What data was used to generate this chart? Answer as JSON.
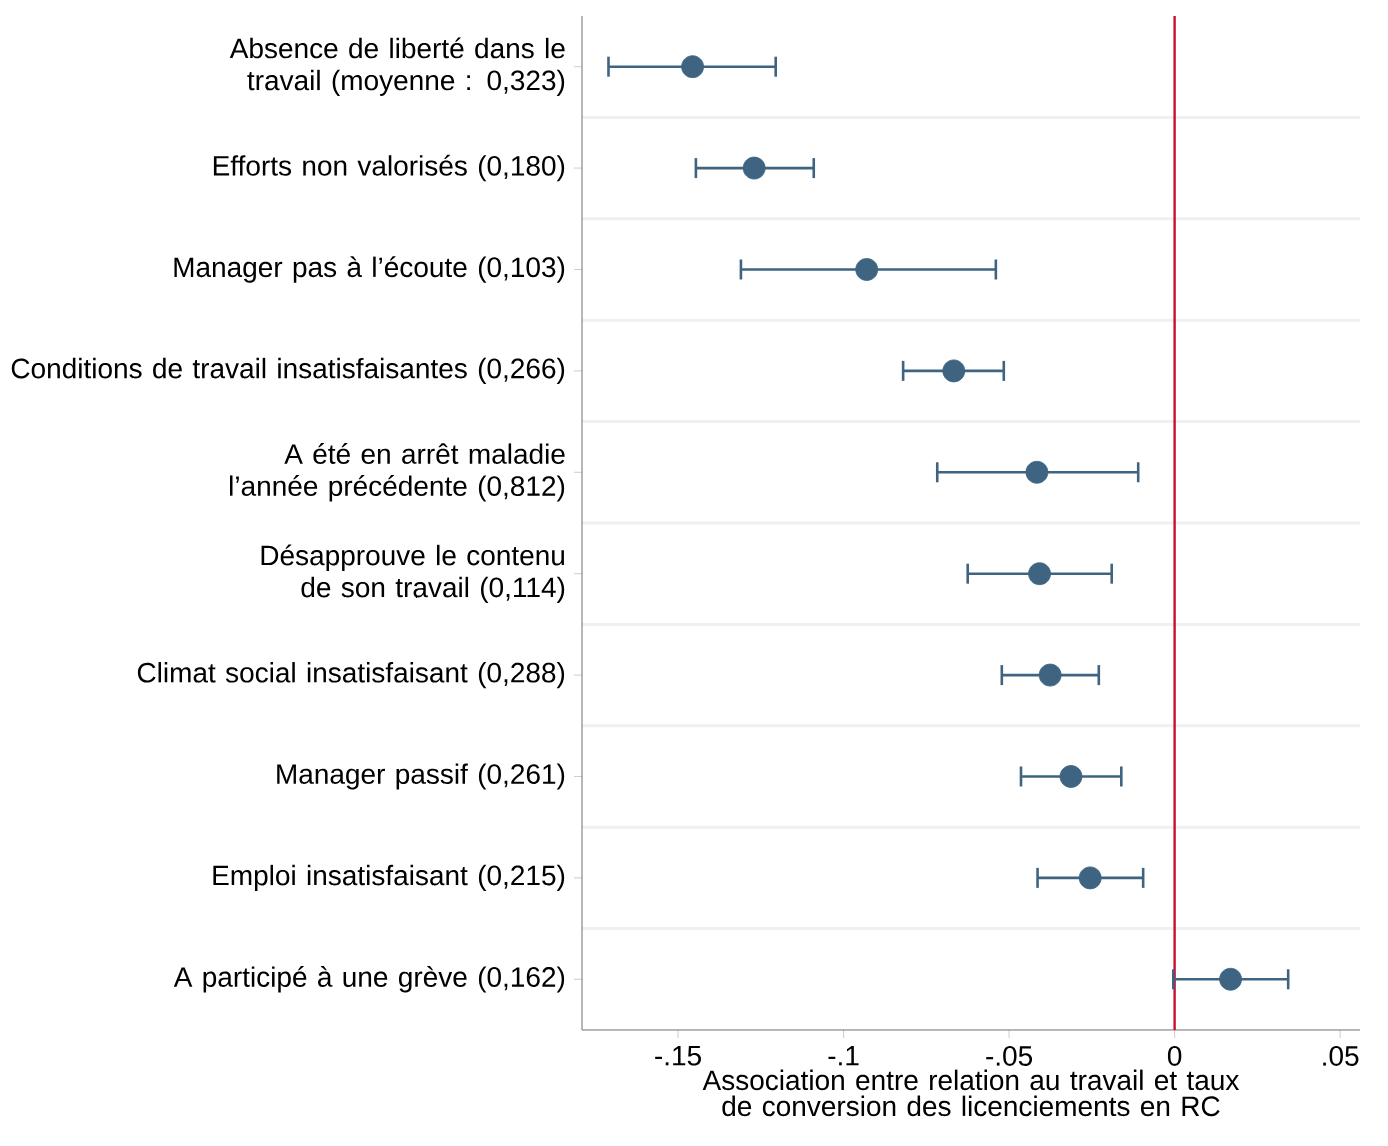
{
  "chart_data": {
    "type": "scatter",
    "orientation": "horizontal",
    "marker": "circle",
    "grid": "y",
    "categories": [
      "Absence de liberté dans le travail (moyenne : 0,323)",
      "Efforts non valorisés (0,180)",
      "Manager pas à l’écoute (0,103)",
      "Conditions de travail insatisfaisantes (0,266)",
      "A été en arrêt maladie l’année précédente (0,812)",
      "Désapprouve le contenu de son travail (0,114)",
      "Climat social insatisfaisant (0,288)",
      "Manager passif  (0,261)",
      "Emploi insatisfaisant (0,215)",
      "A participé à une grève (0,162)"
    ],
    "series": [
      {
        "color": "#3e6481",
        "values": [
          -0.1456,
          -0.127,
          -0.093,
          -0.0667,
          -0.0416,
          -0.0408,
          -0.0376,
          -0.0313,
          -0.0255,
          0.0169
        ],
        "errors": [
          [
            -0.171,
            -0.1205
          ],
          [
            -0.1446,
            -0.109
          ],
          [
            -0.131,
            -0.054
          ],
          [
            -0.082,
            -0.0516
          ],
          [
            -0.0717,
            -0.011
          ],
          [
            -0.0625,
            -0.019
          ],
          [
            -0.0522,
            -0.0229
          ],
          [
            -0.0464,
            -0.0161
          ],
          [
            -0.0414,
            -0.0095
          ],
          [
            -0.0004,
            0.0343
          ]
        ]
      }
    ],
    "xlim": [
      -0.179,
      0.056
    ],
    "xticks": [
      {
        "value": -0.15,
        "label": "-.15"
      },
      {
        "value": -0.1,
        "label": "-.1"
      },
      {
        "value": -0.05,
        "label": "-.05"
      },
      0,
      {
        "value": 0.05,
        "label": ".05"
      }
    ],
    "xlabel": "Association entre relation au travail et taux de conversion des licenciements en RC",
    "ref_lines": [
      {
        "axis": "x",
        "value": 0,
        "color": "#c8102e"
      }
    ]
  }
}
